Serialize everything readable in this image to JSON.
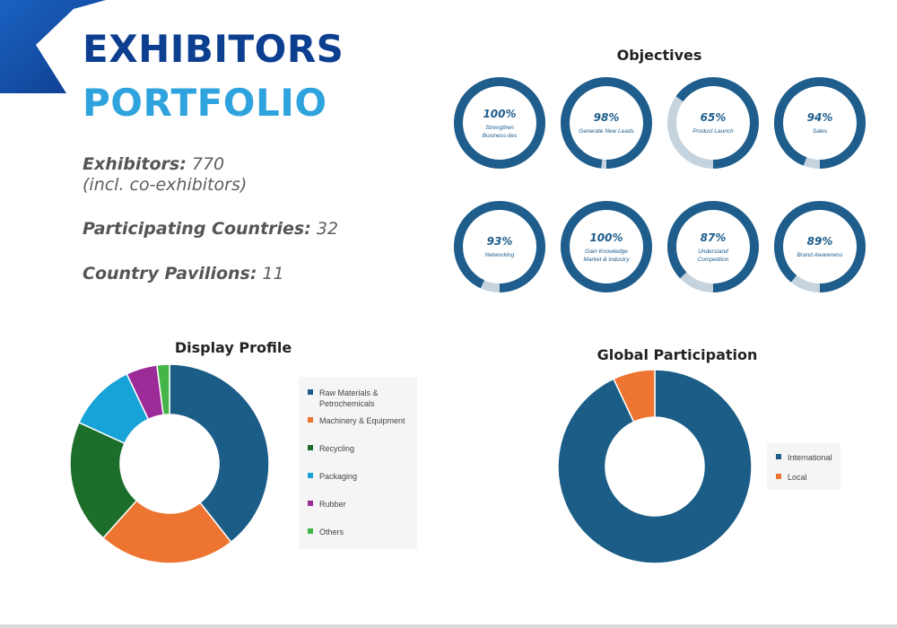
{
  "colors": {
    "title_dark": "#0d3f91",
    "title_light": "#2ea3dd",
    "gauge_fill": "#1e5d8c",
    "gauge_track": "#c5d3de",
    "gauge_text": "#1e5d8c"
  },
  "title": {
    "line1": "EXHIBITORS",
    "line2": "PORTFOLIO"
  },
  "stats": {
    "exhibitors_label": "Exhibitors:",
    "exhibitors_value": "770",
    "exhibitors_note": "(incl. co-exhibitors)",
    "countries_label": "Participating Countries:",
    "countries_value": "32",
    "pavilions_label": "Country Pavilions:",
    "pavilions_value": "11"
  },
  "chart_data": [
    {
      "type": "gauge",
      "title": "Objectives",
      "items": [
        {
          "percent_label": "100%",
          "value": 100,
          "label_lines": [
            "Strengthen",
            "Business-ties"
          ]
        },
        {
          "percent_label": "98%",
          "value": 98,
          "label_lines": [
            "Generate New Leads"
          ]
        },
        {
          "percent_label": "65%",
          "value": 65,
          "label_lines": [
            "Product Launch"
          ]
        },
        {
          "percent_label": "94%",
          "value": 94,
          "label_lines": [
            "Sales"
          ]
        },
        {
          "percent_label": "93%",
          "value": 93,
          "label_lines": [
            "Networking"
          ]
        },
        {
          "percent_label": "100%",
          "value": 100,
          "label_lines": [
            "Gain Knowledge",
            "Market & Industry"
          ]
        },
        {
          "percent_label": "87%",
          "value": 87,
          "label_lines": [
            "Understand",
            "Competition"
          ]
        },
        {
          "percent_label": "89%",
          "value": 89,
          "label_lines": [
            "Brand Awareness"
          ]
        }
      ]
    },
    {
      "type": "pie",
      "title": "Display Profile",
      "legend_position": "right",
      "slices": [
        {
          "name": "Raw Materials & Petrochemicals",
          "legend_lines": [
            "Raw Materials &",
            "Petrochemicals"
          ],
          "value": 39,
          "color": "#1b5d86"
        },
        {
          "name": "Machinery & Equipment",
          "legend_lines": [
            "Machinery & Equipment"
          ],
          "value": 22,
          "color": "#ed7431"
        },
        {
          "name": "Recycling",
          "legend_lines": [
            "Recycling"
          ],
          "value": 20,
          "color": "#1c6e2a"
        },
        {
          "name": "Packaging",
          "legend_lines": [
            "Packaging"
          ],
          "value": 11,
          "color": "#17a2d8"
        },
        {
          "name": "Rubber",
          "legend_lines": [
            "Rubber"
          ],
          "value": 5,
          "color": "#9c2b98"
        },
        {
          "name": "Others",
          "legend_lines": [
            "Others"
          ],
          "value": 2,
          "color": "#44b649"
        }
      ]
    },
    {
      "type": "pie",
      "title": "Global Participation",
      "legend_position": "right",
      "slices": [
        {
          "name": "International",
          "legend_lines": [
            "International"
          ],
          "value": 93,
          "color": "#1b5d86"
        },
        {
          "name": "Local",
          "legend_lines": [
            "Local"
          ],
          "value": 7,
          "color": "#ed7431"
        }
      ]
    }
  ]
}
